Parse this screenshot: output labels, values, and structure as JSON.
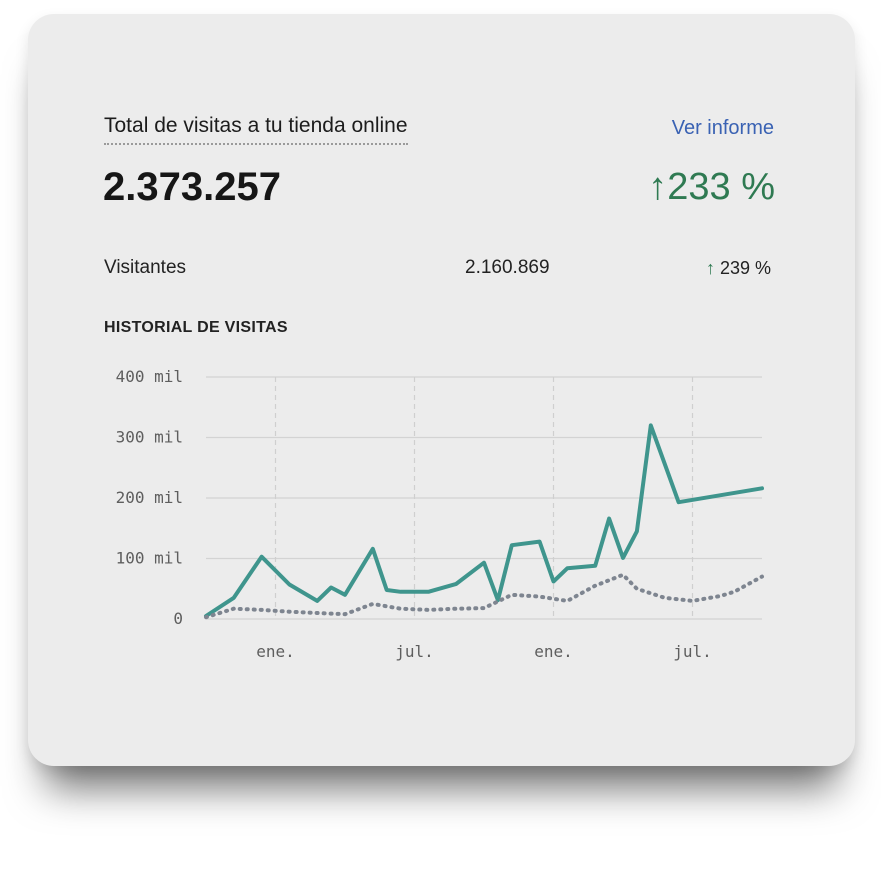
{
  "widget": {
    "title": "Total de visitas a tu tienda online",
    "report_link": "Ver informe",
    "total_value": "2.373.257",
    "total_change": "↑233 %",
    "visitors_label": "Visitantes",
    "visitors_value": "2.160.869",
    "visitors_change_arrow": "↑",
    "visitors_change_value": " 239 %",
    "section_title": "HISTORIAL DE VISITAS"
  },
  "colors": {
    "positive": "#2f7a52",
    "link": "#3a62b3",
    "series_main": "#3f958d",
    "series_previous": "#7e8590"
  },
  "chart_data": {
    "type": "line",
    "x": [
      0,
      1,
      2,
      3,
      4,
      5,
      6,
      7,
      8,
      9,
      10,
      11,
      12,
      13,
      14,
      15,
      16,
      17,
      18,
      19,
      20,
      21,
      22,
      23,
      24,
      25,
      26,
      27,
      28,
      29,
      30,
      31,
      32,
      33,
      34,
      35,
      36,
      37,
      38,
      39,
      40
    ],
    "x_ticks": [
      {
        "x": 5,
        "label": "ene."
      },
      {
        "x": 15,
        "label": "jul."
      },
      {
        "x": 25,
        "label": "ene."
      },
      {
        "x": 35,
        "label": "jul."
      }
    ],
    "y_ticks": [
      {
        "value": 0,
        "label": "0"
      },
      {
        "value": 100000,
        "label": "100 mil"
      },
      {
        "value": 200000,
        "label": "200 mil"
      },
      {
        "value": 300000,
        "label": "300 mil"
      },
      {
        "value": 400000,
        "label": "400 mil"
      }
    ],
    "ylim": [
      0,
      400000
    ],
    "grid": true,
    "series": [
      {
        "style": "solid",
        "values": [
          5000,
          35000,
          103000,
          57000,
          30000,
          52000,
          40000,
          116000,
          48000,
          45000,
          45000,
          58000,
          93000,
          31000,
          122000,
          128000,
          62000,
          84000,
          88000,
          166000,
          101000,
          145000,
          320000,
          193000,
          216000
        ],
        "x": [
          0,
          2,
          4,
          6,
          8,
          9,
          10,
          12,
          13,
          14,
          16,
          18,
          20,
          21,
          22,
          24,
          25,
          26,
          28,
          29,
          30,
          31,
          32,
          34,
          40
        ]
      },
      {
        "style": "dotted",
        "values": [
          3000,
          17000,
          15000,
          12000,
          10000,
          8000,
          25000,
          17000,
          15000,
          17000,
          18000,
          40000,
          37000,
          30000,
          55000,
          73000,
          50000,
          35000,
          30000,
          38000,
          45000,
          70000
        ],
        "x": [
          0,
          2,
          4,
          6,
          8,
          10,
          12,
          14,
          16,
          18,
          20,
          22,
          24,
          26,
          28,
          30,
          31,
          33,
          35,
          37,
          38,
          40
        ]
      }
    ]
  }
}
